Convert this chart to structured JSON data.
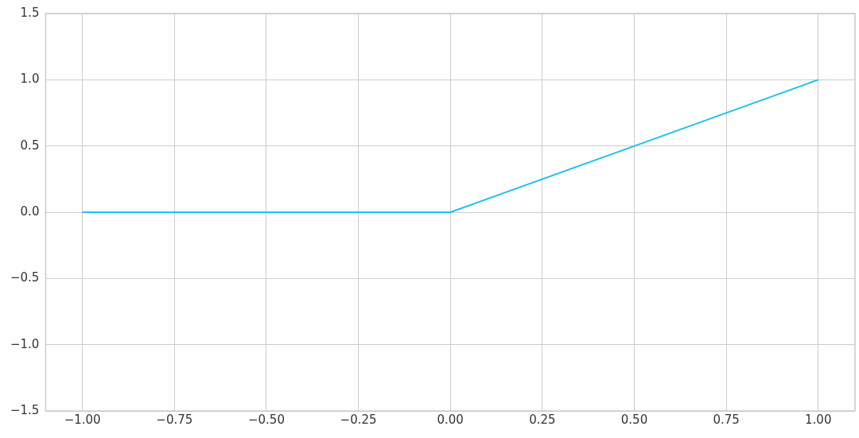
{
  "chart_data": {
    "type": "line",
    "x": [
      -1,
      0,
      1
    ],
    "values": [
      0,
      0,
      1
    ],
    "color": "#1ec0f0",
    "xlim": [
      -1.1,
      1.1
    ],
    "xticks": [
      {
        "value": -1,
        "label": "−1.00"
      },
      {
        "value": -0.75,
        "label": "−0.75"
      },
      {
        "value": -0.5,
        "label": "−0.50"
      },
      {
        "value": -0.25,
        "label": "−0.25"
      },
      {
        "value": 0,
        "label": "0.00"
      },
      {
        "value": 0.25,
        "label": "0.25"
      },
      {
        "value": 0.5,
        "label": "0.50"
      },
      {
        "value": 0.75,
        "label": "0.75"
      },
      {
        "value": 1,
        "label": "1.00"
      }
    ],
    "ylim": [
      -1.5,
      1.5
    ],
    "yticks": [
      {
        "value": -1.5,
        "label": "−1.5"
      },
      {
        "value": -1,
        "label": "−1.0"
      },
      {
        "value": -0.5,
        "label": "−0.5"
      },
      {
        "value": 0,
        "label": "0.0"
      },
      {
        "value": 0.5,
        "label": "0.5"
      },
      {
        "value": 1,
        "label": "1.0"
      },
      {
        "value": 1.5,
        "label": "1.5"
      }
    ],
    "grid": true
  }
}
